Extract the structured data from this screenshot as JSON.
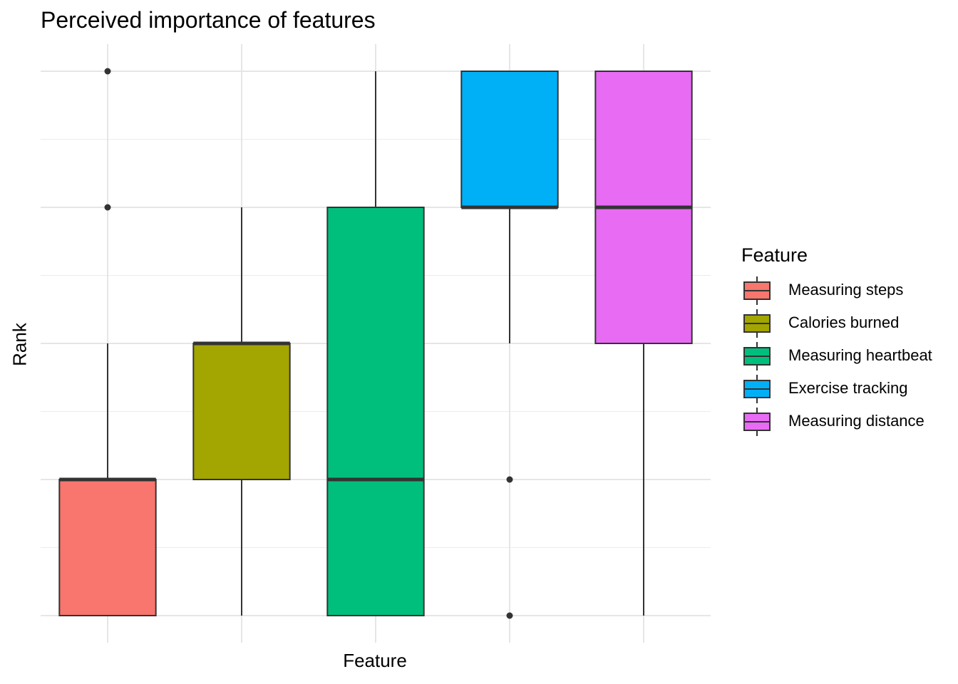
{
  "chart_data": {
    "type": "boxplot",
    "title": "Perceived importance of features",
    "xlabel": "Feature",
    "ylabel": "Rank",
    "ylim": [
      0.8,
      5.2
    ],
    "grid": true,
    "legend": {
      "title": "Feature",
      "placement": "right"
    },
    "series": [
      {
        "name": "Measuring steps",
        "color": "#F8766D",
        "min": 1,
        "q1": 1,
        "median": 2,
        "q3": 2,
        "max": 3,
        "outliers": [
          4,
          5
        ]
      },
      {
        "name": "Calories burned",
        "color": "#A3A500",
        "min": 1,
        "q1": 2,
        "median": 3,
        "q3": 3,
        "max": 4,
        "outliers": []
      },
      {
        "name": "Measuring heartbeat",
        "color": "#00BF7D",
        "min": 1,
        "q1": 1,
        "median": 2,
        "q3": 4,
        "max": 5,
        "outliers": []
      },
      {
        "name": "Exercise tracking",
        "color": "#00B0F6",
        "min": 3,
        "q1": 4,
        "median": 4,
        "q3": 5,
        "max": 5,
        "outliers": [
          1,
          2
        ]
      },
      {
        "name": "Measuring distance",
        "color": "#E76BF3",
        "min": 1,
        "q1": 3,
        "median": 4,
        "q3": 5,
        "max": 5,
        "outliers": []
      }
    ]
  }
}
